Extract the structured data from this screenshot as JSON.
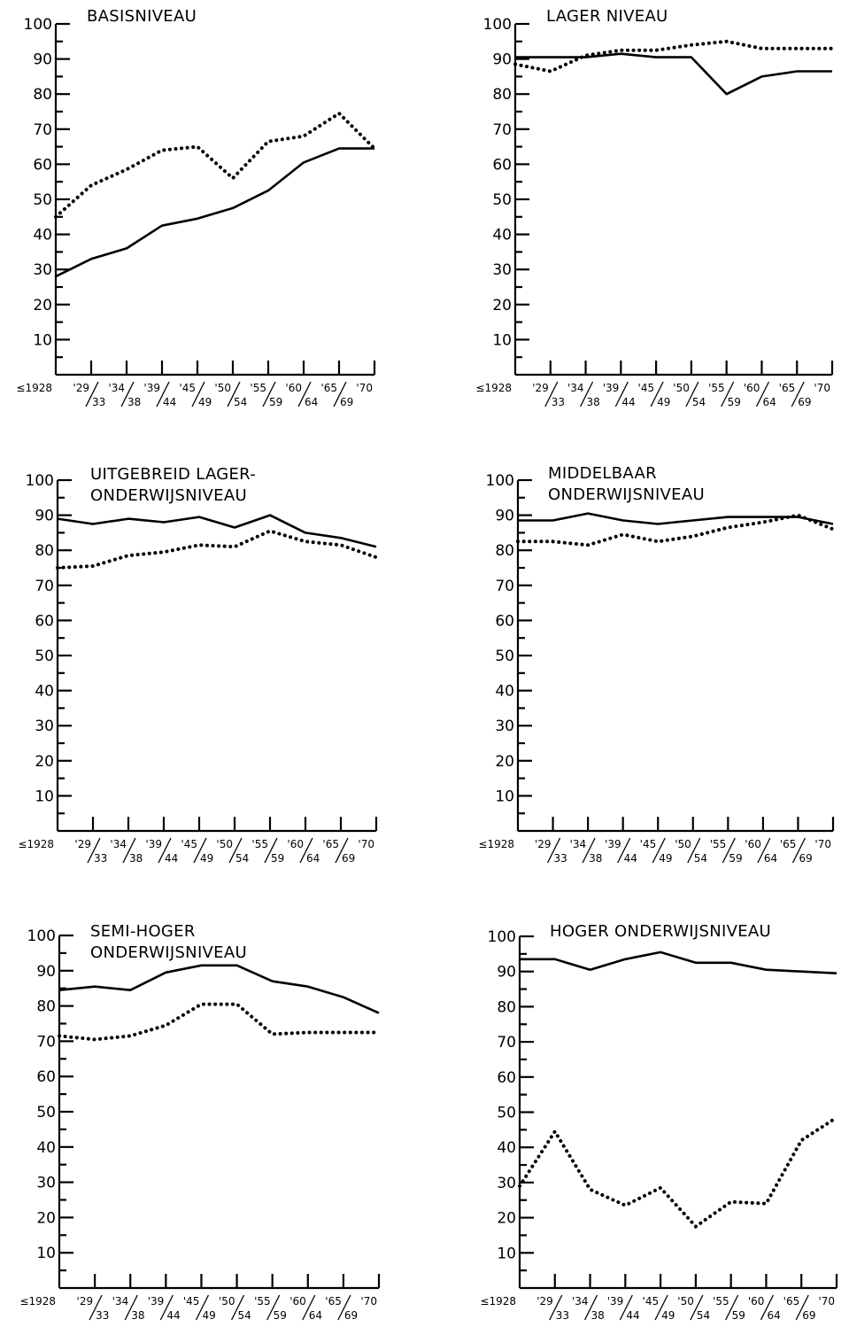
{
  "figure": {
    "x_first_label": "≤1928",
    "x_tick_top": [
      "'29",
      "'34",
      "'39",
      "'45",
      "'50",
      "'55",
      "'60",
      "'65",
      "'70"
    ],
    "x_tick_bottom": [
      "33",
      "38",
      "44",
      "49",
      "54",
      "59",
      "64",
      "69"
    ],
    "y_ticks": [
      10,
      20,
      30,
      40,
      50,
      60,
      70,
      80,
      90,
      100
    ]
  },
  "chart_data": [
    {
      "type": "line",
      "title_lines": [
        "BASISNIVEAU"
      ],
      "categories": [
        "≤1928",
        "'29/33",
        "'34/38",
        "'39/44",
        "'45/49",
        "'50/54",
        "'55/59",
        "'60/64",
        "'65/69",
        "'70"
      ],
      "ylim": [
        0,
        100
      ],
      "series": [
        {
          "style": "solid",
          "values": [
            28,
            33,
            36,
            42.5,
            44.5,
            47.5,
            52.5,
            60.5,
            64.5,
            64.5
          ]
        },
        {
          "style": "dotted",
          "values": [
            45,
            54,
            58.5,
            64,
            65,
            56,
            66.5,
            68,
            74.5,
            64.5
          ]
        }
      ]
    },
    {
      "type": "line",
      "title_lines": [
        "LAGER NIVEAU"
      ],
      "categories": [
        "≤1928",
        "'29/33",
        "'34/38",
        "'39/44",
        "'45/49",
        "'50/54",
        "'55/59",
        "'60/64",
        "'65/69",
        "'70"
      ],
      "ylim": [
        0,
        100
      ],
      "series": [
        {
          "style": "solid",
          "values": [
            90.5,
            90.5,
            90.5,
            91.5,
            90.5,
            90.5,
            80,
            85,
            86.5,
            86.5
          ]
        },
        {
          "style": "dotted",
          "values": [
            88.5,
            86.5,
            91,
            92.5,
            92.5,
            94,
            95,
            93,
            93,
            93
          ]
        }
      ]
    },
    {
      "type": "line",
      "title_lines": [
        "UITGEBREID LAGER-",
        "ONDERWIJSNIVEAU"
      ],
      "categories": [
        "≤1928",
        "'29/33",
        "'34/38",
        "'39/44",
        "'45/49",
        "'50/54",
        "'55/59",
        "'60/64",
        "'65/69",
        "'70"
      ],
      "ylim": [
        0,
        100
      ],
      "series": [
        {
          "style": "solid",
          "values": [
            89,
            87.5,
            89,
            88,
            89.5,
            86.5,
            90,
            85,
            83.5,
            81
          ]
        },
        {
          "style": "dotted",
          "values": [
            75,
            75.5,
            78.5,
            79.5,
            81.5,
            81,
            85.5,
            82.5,
            81.5,
            78
          ]
        }
      ]
    },
    {
      "type": "line",
      "title_lines": [
        "MIDDELBAAR",
        "ONDERWIJSNIVEAU"
      ],
      "categories": [
        "≤1928",
        "'29/33",
        "'34/38",
        "'39/44",
        "'45/49",
        "'50/54",
        "'55/59",
        "'60/64",
        "'65/69",
        "'70"
      ],
      "ylim": [
        0,
        100
      ],
      "series": [
        {
          "style": "solid",
          "values": [
            88.5,
            88.5,
            90.5,
            88.5,
            87.5,
            88.5,
            89.5,
            89.5,
            89.5,
            87.5
          ]
        },
        {
          "style": "dotted",
          "values": [
            82.5,
            82.5,
            81.5,
            84.5,
            82.5,
            84,
            86.5,
            88,
            90,
            86
          ]
        }
      ]
    },
    {
      "type": "line",
      "title_lines": [
        "SEMI-HOGER",
        "ONDERWIJSNIVEAU"
      ],
      "categories": [
        "≤1928",
        "'29/33",
        "'34/38",
        "'39/44",
        "'45/49",
        "'50/54",
        "'55/59",
        "'60/64",
        "'65/69",
        "'70"
      ],
      "ylim": [
        0,
        100
      ],
      "series": [
        {
          "style": "solid",
          "values": [
            84.5,
            85.5,
            84.5,
            89.5,
            91.5,
            91.5,
            87,
            85.5,
            82.5,
            78
          ]
        },
        {
          "style": "dotted",
          "values": [
            71.5,
            70.5,
            71.5,
            74.5,
            80.5,
            80.5,
            72,
            72.5,
            72.5,
            72.5
          ]
        }
      ]
    },
    {
      "type": "line",
      "title_lines": [
        "HOGER ONDERWIJSNIVEAU"
      ],
      "categories": [
        "≤1928",
        "'29/33",
        "'34/38",
        "'39/44",
        "'45/49",
        "'50/54",
        "'55/59",
        "'60/64",
        "'65/69",
        "'70"
      ],
      "ylim": [
        0,
        100
      ],
      "series": [
        {
          "style": "solid",
          "values": [
            93.5,
            93.5,
            90.5,
            93.5,
            95.5,
            92.5,
            92.5,
            90.5,
            90,
            89.5
          ]
        },
        {
          "style": "dotted",
          "values": [
            29,
            44.5,
            28,
            23.5,
            28.5,
            17.5,
            24.5,
            24,
            42,
            48.5
          ]
        }
      ]
    }
  ]
}
